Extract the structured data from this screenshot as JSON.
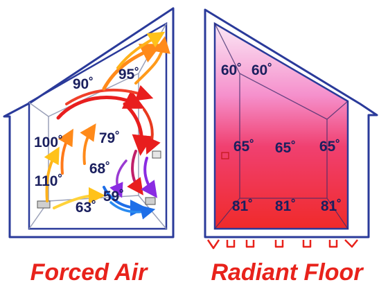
{
  "colors": {
    "outline": "#2a3a9a",
    "caption": "#e8221b",
    "temp_text": "#1a1f5e",
    "radiant_top": "#f6d8f0",
    "radiant_mid": "#f060b0",
    "radiant_bottom": "#f02a2a",
    "pipe": "#e8221b",
    "arrow_hot": "#e81e1e",
    "arrow_warm": "#ff9a1a",
    "arrow_mid": "#ffd23a",
    "arrow_cool": "#8a2be2",
    "arrow_cold": "#1e6ee8"
  },
  "forced_air": {
    "caption": "Forced Air",
    "temps": {
      "t_top_left": "90˚",
      "t_top_right": "95˚",
      "t_upper_left": "100˚",
      "t_center": "79˚",
      "t_middle": "68˚",
      "t_lower_left": "110˚",
      "t_floor_right": "59˚",
      "t_floor": "63˚"
    }
  },
  "radiant_floor": {
    "caption": "Radiant Floor",
    "temps": {
      "t_ceiling_left": "60˚",
      "t_ceiling_right": "60˚",
      "t_mid_left": "65˚",
      "t_mid_center": "65˚",
      "t_mid_right": "65˚",
      "t_floor_left": "81˚",
      "t_floor_center": "81˚",
      "t_floor_right": "81˚"
    }
  }
}
